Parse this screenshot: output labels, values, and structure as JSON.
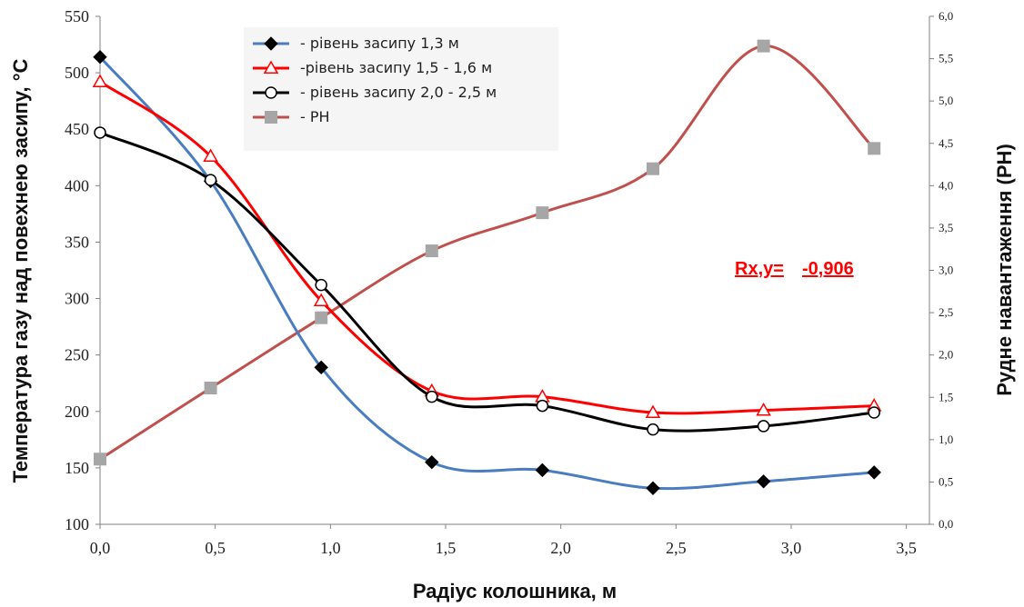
{
  "chart_data": {
    "type": "line",
    "title": "",
    "xlabel": "Радіус колошника, м",
    "ylabel_left": "Температура газу над повехнею засипу, °С",
    "ylabel_right": "Рудне навантаження (РН)",
    "x_ticks": [
      "0,0",
      "0,5",
      "1,0",
      "1,5",
      "2,0",
      "2,5",
      "3,0",
      "3,5"
    ],
    "y_left_ticks": [
      "100",
      "150",
      "200",
      "250",
      "300",
      "350",
      "400",
      "450",
      "500",
      "550"
    ],
    "y_right_ticks": [
      "0,0",
      "0,5",
      "1,0",
      "1,5",
      "2,0",
      "2,5",
      "3,0",
      "3,5",
      "4,0",
      "4,5",
      "5,0",
      "5,5",
      "6,0"
    ],
    "xlim": [
      0,
      3.6
    ],
    "ylim_left": [
      100,
      550
    ],
    "ylim_right": [
      0,
      6
    ],
    "grid": false,
    "legend_position": "top-left",
    "x": [
      0.0,
      0.48,
      0.96,
      1.44,
      1.92,
      2.4,
      2.88,
      3.36
    ],
    "series": [
      {
        "name": "- рівень засипу 1,3 м",
        "axis": "left",
        "color": "#4a7dc0",
        "marker": "diamond",
        "marker_color": "#000000",
        "values": [
          514,
          404,
          239,
          155,
          148,
          132,
          138,
          146
        ]
      },
      {
        "name": "-рівень засипу 1,5 - 1,6 м",
        "axis": "left",
        "color": "#ff0000",
        "marker": "triangle-open",
        "marker_color": "#ff0000",
        "values": [
          492,
          426,
          298,
          218,
          213,
          199,
          201,
          205
        ]
      },
      {
        "name": "- рівень засипу 2,0 - 2,5 м",
        "axis": "left",
        "color": "#000000",
        "marker": "circle-open",
        "marker_color": "#000000",
        "values": [
          447,
          405,
          312,
          213,
          205,
          184,
          187,
          199
        ]
      },
      {
        "name": "- РН",
        "axis": "right",
        "color": "#c0504d",
        "marker": "square",
        "marker_color": "#a6a6a6",
        "values": [
          0.77,
          1.61,
          2.44,
          3.23,
          3.68,
          4.2,
          5.65,
          4.44
        ]
      }
    ],
    "annotation": {
      "label": "Rx,y=",
      "value": "-0,906",
      "color": "#ff0000"
    }
  }
}
